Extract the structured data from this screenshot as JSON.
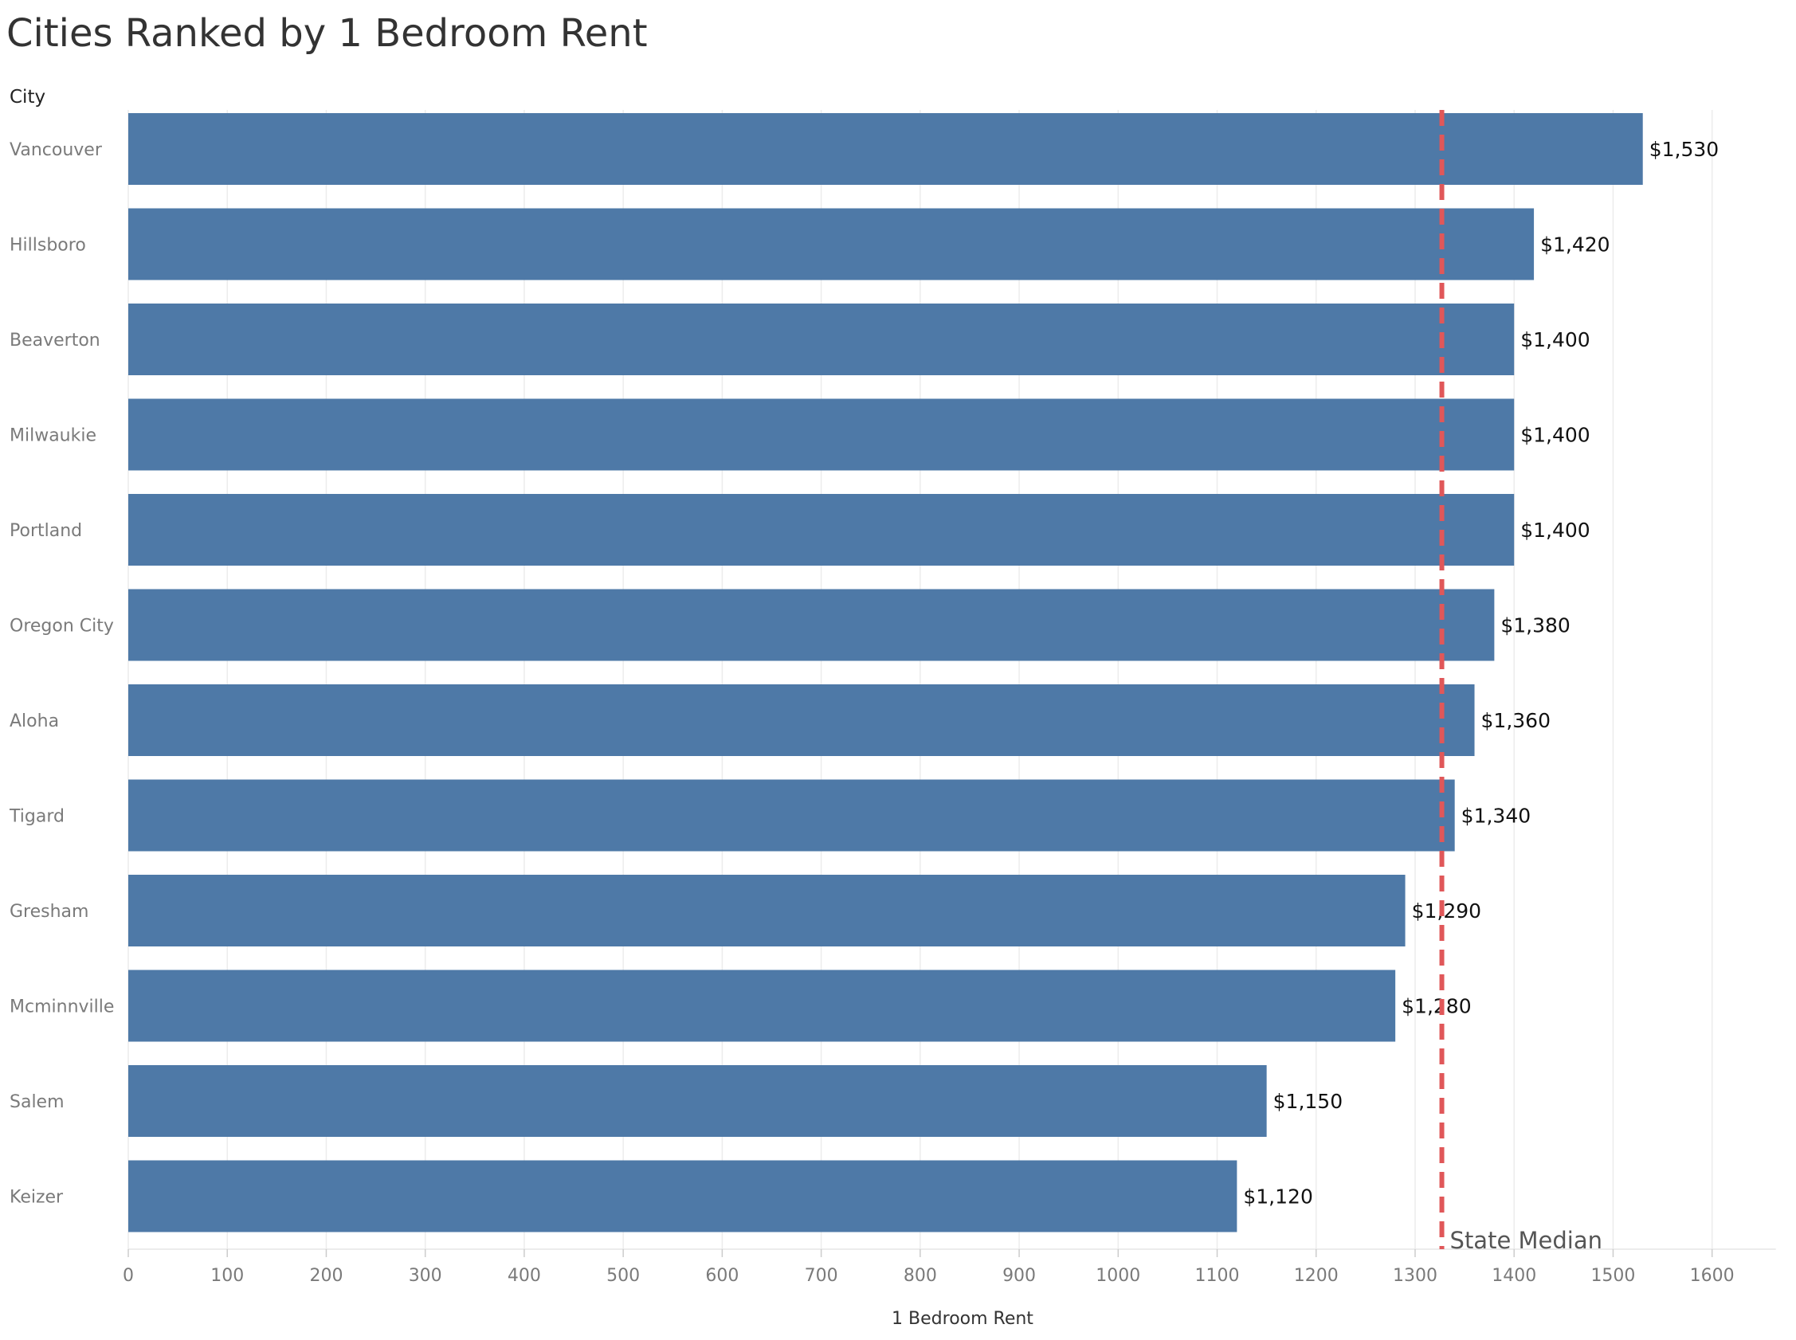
{
  "chart_data": {
    "type": "bar",
    "orientation": "horizontal",
    "title": "Cities Ranked by 1 Bedroom Rent",
    "ylabel": "City",
    "xlabel": "1 Bedroom Rent",
    "categories": [
      "Vancouver",
      "Hillsboro",
      "Beaverton",
      "Milwaukie",
      "Portland",
      "Oregon City",
      "Aloha",
      "Tigard",
      "Gresham",
      "Mcminnville",
      "Salem",
      "Keizer"
    ],
    "values": [
      1530,
      1420,
      1400,
      1400,
      1400,
      1380,
      1360,
      1340,
      1290,
      1280,
      1150,
      1120
    ],
    "data_labels": [
      "$1,530",
      "$1,420",
      "$1,400",
      "$1,400",
      "$1,400",
      "$1,380",
      "$1,360",
      "$1,340",
      "$1,290",
      "$1,280",
      "$1,150",
      "$1,120"
    ],
    "xlim": [
      0,
      1600
    ],
    "xticks": [
      0,
      100,
      200,
      300,
      400,
      500,
      600,
      700,
      800,
      900,
      1000,
      1100,
      1200,
      1300,
      1400,
      1500,
      1600
    ],
    "reference_line": {
      "label": "State Median",
      "value": 1327,
      "color": "#e05759",
      "style": "dashed"
    },
    "bar_color": "#4e79a7",
    "grid": true,
    "legend": "none"
  }
}
